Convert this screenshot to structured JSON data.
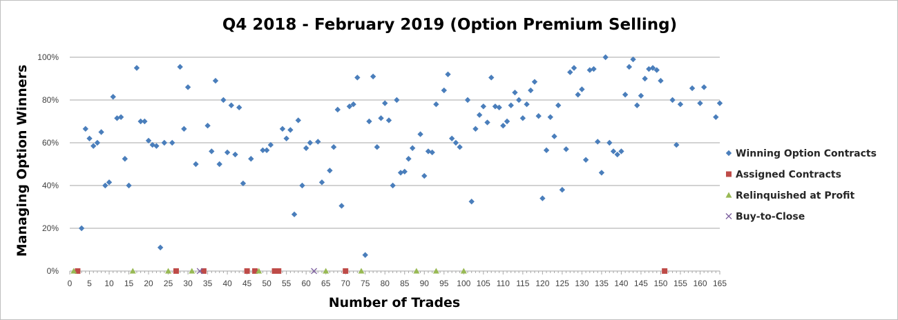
{
  "chart_data": {
    "type": "scatter",
    "title": "Q4 2018 - February 2019 (Option Premium Selling)",
    "xlabel": "Number of Trades",
    "ylabel": "Managing Option Winners",
    "xlim": [
      0,
      165
    ],
    "ylim": [
      0,
      1
    ],
    "x_ticks": [
      "0",
      "5",
      "10",
      "15",
      "20",
      "25",
      "30",
      "35",
      "40",
      "45",
      "50",
      "55",
      "60",
      "65",
      "70",
      "75",
      "80",
      "85",
      "90",
      "95",
      "100",
      "105",
      "110",
      "115",
      "120",
      "125",
      "130",
      "135",
      "140",
      "145",
      "150",
      "155",
      "160",
      "165"
    ],
    "y_ticks": [
      "0%",
      "20%",
      "40%",
      "60%",
      "80%",
      "100%"
    ],
    "grid": "horizontal",
    "legend_position": "right",
    "series": [
      {
        "name": "Winning Option Contracts",
        "marker": "diamond",
        "color": "#4a7ebb",
        "points": [
          [
            3,
            0.2
          ],
          [
            4,
            0.665
          ],
          [
            5,
            0.62
          ],
          [
            6,
            0.585
          ],
          [
            7,
            0.6
          ],
          [
            8,
            0.65
          ],
          [
            9,
            0.4
          ],
          [
            10,
            0.415
          ],
          [
            11,
            0.815
          ],
          [
            12,
            0.715
          ],
          [
            13,
            0.72
          ],
          [
            14,
            0.525
          ],
          [
            15,
            0.4
          ],
          [
            17,
            0.95
          ],
          [
            18,
            0.7
          ],
          [
            19,
            0.7
          ],
          [
            20,
            0.61
          ],
          [
            21,
            0.59
          ],
          [
            22,
            0.585
          ],
          [
            23,
            0.11
          ],
          [
            24,
            0.6
          ],
          [
            26,
            0.6
          ],
          [
            28,
            0.955
          ],
          [
            29,
            0.665
          ],
          [
            30,
            0.86
          ],
          [
            32,
            0.5
          ],
          [
            35,
            0.68
          ],
          [
            36,
            0.56
          ],
          [
            37,
            0.89
          ],
          [
            38,
            0.5
          ],
          [
            39,
            0.8
          ],
          [
            40,
            0.555
          ],
          [
            41,
            0.775
          ],
          [
            42,
            0.545
          ],
          [
            43,
            0.765
          ],
          [
            44,
            0.41
          ],
          [
            46,
            0.525
          ],
          [
            49,
            0.565
          ],
          [
            50,
            0.565
          ],
          [
            51,
            0.59
          ],
          [
            54,
            0.665
          ],
          [
            55,
            0.62
          ],
          [
            56,
            0.66
          ],
          [
            57,
            0.265
          ],
          [
            58,
            0.705
          ],
          [
            59,
            0.4
          ],
          [
            60,
            0.575
          ],
          [
            61,
            0.6
          ],
          [
            63,
            0.605
          ],
          [
            64,
            0.415
          ],
          [
            66,
            0.47
          ],
          [
            67,
            0.58
          ],
          [
            68,
            0.755
          ],
          [
            69,
            0.305
          ],
          [
            71,
            0.77
          ],
          [
            72,
            0.78
          ],
          [
            73,
            0.905
          ],
          [
            75,
            0.075
          ],
          [
            76,
            0.7
          ],
          [
            77,
            0.91
          ],
          [
            78,
            0.58
          ],
          [
            79,
            0.715
          ],
          [
            80,
            0.785
          ],
          [
            81,
            0.705
          ],
          [
            82,
            0.4
          ],
          [
            83,
            0.8
          ],
          [
            84,
            0.46
          ],
          [
            85,
            0.465
          ],
          [
            86,
            0.525
          ],
          [
            87,
            0.575
          ],
          [
            89,
            0.64
          ],
          [
            90,
            0.445
          ],
          [
            91,
            0.56
          ],
          [
            92,
            0.555
          ],
          [
            93,
            0.78
          ],
          [
            95,
            0.845
          ],
          [
            96,
            0.92
          ],
          [
            97,
            0.62
          ],
          [
            98,
            0.6
          ],
          [
            99,
            0.58
          ],
          [
            101,
            0.8
          ],
          [
            102,
            0.325
          ],
          [
            103,
            0.665
          ],
          [
            104,
            0.73
          ],
          [
            105,
            0.77
          ],
          [
            106,
            0.695
          ],
          [
            107,
            0.905
          ],
          [
            108,
            0.77
          ],
          [
            109,
            0.765
          ],
          [
            110,
            0.68
          ],
          [
            111,
            0.7
          ],
          [
            112,
            0.775
          ],
          [
            113,
            0.835
          ],
          [
            114,
            0.8
          ],
          [
            115,
            0.715
          ],
          [
            116,
            0.78
          ],
          [
            117,
            0.845
          ],
          [
            118,
            0.885
          ],
          [
            119,
            0.725
          ],
          [
            120,
            0.34
          ],
          [
            121,
            0.565
          ],
          [
            122,
            0.72
          ],
          [
            123,
            0.63
          ],
          [
            124,
            0.775
          ],
          [
            125,
            0.38
          ],
          [
            126,
            0.57
          ],
          [
            127,
            0.93
          ],
          [
            128,
            0.95
          ],
          [
            129,
            0.825
          ],
          [
            130,
            0.85
          ],
          [
            131,
            0.52
          ],
          [
            132,
            0.94
          ],
          [
            133,
            0.945
          ],
          [
            134,
            0.605
          ],
          [
            135,
            0.46
          ],
          [
            136,
            1.0
          ],
          [
            137,
            0.6
          ],
          [
            138,
            0.56
          ],
          [
            139,
            0.545
          ],
          [
            140,
            0.56
          ],
          [
            141,
            0.825
          ],
          [
            142,
            0.955
          ],
          [
            143,
            0.99
          ],
          [
            144,
            0.775
          ],
          [
            145,
            0.82
          ],
          [
            146,
            0.9
          ],
          [
            147,
            0.945
          ],
          [
            148,
            0.95
          ],
          [
            149,
            0.94
          ],
          [
            150,
            0.89
          ],
          [
            153,
            0.8
          ],
          [
            154,
            0.59
          ],
          [
            155,
            0.78
          ],
          [
            158,
            0.855
          ],
          [
            160,
            0.785
          ],
          [
            161,
            0.86
          ],
          [
            164,
            0.72
          ],
          [
            165,
            0.785
          ]
        ]
      },
      {
        "name": "Assigned Contracts",
        "marker": "square",
        "color": "#be4b48",
        "points": [
          [
            2,
            0
          ],
          [
            27,
            0
          ],
          [
            34,
            0
          ],
          [
            45,
            0
          ],
          [
            47,
            0
          ],
          [
            52,
            0
          ],
          [
            53,
            0
          ],
          [
            70,
            0
          ],
          [
            151,
            0
          ]
        ]
      },
      {
        "name": "Relinquished at Profit",
        "marker": "triangle",
        "color": "#98b954",
        "points": [
          [
            1,
            0
          ],
          [
            16,
            0
          ],
          [
            25,
            0
          ],
          [
            31,
            0
          ],
          [
            48,
            0
          ],
          [
            65,
            0
          ],
          [
            74,
            0
          ],
          [
            88,
            0
          ],
          [
            93,
            0
          ],
          [
            100,
            0
          ]
        ]
      },
      {
        "name": "Buy-to-Close",
        "marker": "x",
        "color": "#7d60a0",
        "points": [
          [
            33,
            0
          ],
          [
            62,
            0
          ]
        ]
      }
    ]
  }
}
